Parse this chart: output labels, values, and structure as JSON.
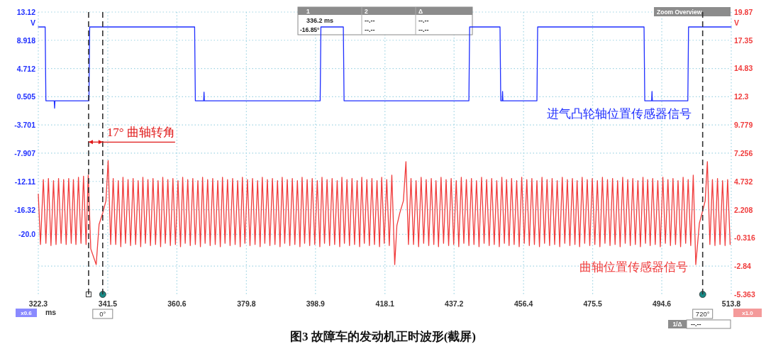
{
  "chart_data": {
    "type": "line",
    "xlabel": "ms",
    "ylabel": "V",
    "y2label": "V",
    "xlim": [
      322.3,
      513.8
    ],
    "xticks": [
      322.3,
      341.5,
      360.6,
      379.8,
      398.9,
      418.1,
      437.2,
      456.4,
      475.5,
      494.6,
      513.8
    ],
    "ylim": [
      -28.94,
      13.12
    ],
    "yticks": [
      13.12,
      8.918,
      4.712,
      0.505,
      -3.701,
      -7.907,
      -12.11,
      -16.32,
      {
        "value": -20.0,
        "label": "-20.0"
      },
      {
        "value": -24.73,
        "label": null
      }
    ],
    "y2lim": [
      -5.363,
      19.87
    ],
    "y2ticks": [
      19.87,
      17.35,
      14.83,
      12.3,
      9.779,
      7.256,
      4.732,
      2.208,
      -0.316,
      -2.84,
      -5.363
    ],
    "grid": true,
    "series": [
      {
        "name": "进气凸轮轴位置传感器信号",
        "color": "#1f2fff",
        "x": [
          322.3,
          324.2,
          324.4,
          326.7,
          326.8,
          326.9,
          336.3,
          336.5,
          365.5,
          365.7,
          368.0,
          368.1,
          368.2,
          400.2,
          400.4,
          406.6,
          406.8,
          441.3,
          441.5,
          449.9,
          450.1,
          450.5,
          450.6,
          450.7,
          460.1,
          460.3,
          489.7,
          489.9,
          491.8,
          491.9,
          492.0,
          501.8,
          502.0,
          513.8
        ],
        "values": [
          10.9,
          10.9,
          -0.1,
          -0.1,
          -1.2,
          -0.1,
          -0.1,
          10.9,
          10.9,
          -0.1,
          -0.1,
          1.2,
          -0.1,
          -0.1,
          10.9,
          10.9,
          -0.1,
          -0.1,
          10.9,
          10.9,
          -0.1,
          -0.1,
          1.3,
          -0.1,
          -0.1,
          10.9,
          10.9,
          -0.1,
          -0.1,
          1.3,
          -0.1,
          -0.1,
          10.9,
          10.9
        ]
      },
      {
        "name": "曲轴位置传感器信号",
        "color": "#f03c3c",
        "axis": "y2",
        "x": [
          322.3,
          322.9,
          323.7,
          324.4,
          325.1,
          325.8,
          326.5,
          327.2,
          327.9,
          328.6,
          329.3,
          330.0,
          330.7,
          331.4,
          332.0,
          332.7,
          333.4,
          334.1,
          334.8,
          335.5,
          336.1,
          336.8,
          338.3,
          339.1,
          340.1,
          341.0,
          341.6,
          342.3,
          343.0,
          343.7,
          344.4,
          345.1,
          345.7,
          346.4,
          347.1,
          347.8,
          348.5,
          349.2,
          349.9,
          350.6,
          351.2,
          351.9,
          352.6,
          353.3,
          354.0,
          354.7,
          355.4,
          356.1,
          356.7,
          357.4,
          358.1,
          358.8,
          359.5,
          360.2,
          360.9,
          361.6,
          362.2,
          362.9,
          363.6,
          364.3,
          365.0,
          365.7,
          366.4,
          367.1,
          367.7,
          368.4,
          369.1,
          369.8,
          370.5,
          371.2,
          371.9,
          372.6,
          373.2,
          373.9,
          374.6,
          375.3,
          376.0,
          376.7,
          377.4,
          378.1,
          378.7,
          379.4,
          380.1,
          380.8,
          381.5,
          382.2,
          382.9,
          383.6,
          384.2,
          384.9,
          385.6,
          386.3,
          387.0,
          387.7,
          388.4,
          389.1,
          389.7,
          390.4,
          391.1,
          391.8,
          392.5,
          393.2,
          393.9,
          394.6,
          395.2,
          395.9,
          396.6,
          397.3,
          398.0,
          398.7,
          399.4,
          400.1,
          400.7,
          401.4,
          402.1,
          402.8,
          403.5,
          404.2,
          404.9,
          405.6,
          406.2,
          406.9,
          407.6,
          408.3,
          409.0,
          409.7,
          410.4,
          411.1,
          411.7,
          412.4,
          413.1,
          413.8,
          414.5,
          415.2,
          415.9,
          416.6,
          417.2,
          417.9,
          418.6,
          419.3,
          420.0,
          420.8,
          421.4,
          422.2,
          423.2,
          423.9,
          424.6,
          425.3,
          426.0,
          426.7,
          427.4,
          428.1,
          428.8,
          429.5,
          430.2,
          430.9,
          431.6,
          432.2,
          432.9,
          433.6,
          434.3,
          435.0,
          435.7,
          436.4,
          437.1,
          437.8,
          438.5,
          439.2,
          439.9,
          440.6,
          441.3,
          442.0,
          442.7,
          443.4,
          444.1,
          444.8,
          445.5,
          446.2,
          446.9,
          447.6,
          448.3,
          449.0,
          449.7,
          450.4,
          451.1,
          451.7,
          452.4,
          453.1,
          453.8,
          454.5,
          455.2,
          455.9,
          456.6,
          457.3,
          458.0,
          458.7,
          459.4,
          460.1,
          460.8,
          461.5,
          462.2,
          462.9,
          463.6,
          464.3,
          465.0,
          465.7,
          466.4,
          467.1,
          467.8,
          468.5,
          469.2,
          469.9,
          470.6,
          471.2,
          471.9,
          472.6,
          473.3,
          474.0,
          474.7,
          475.4,
          476.1,
          476.8,
          477.5,
          478.2,
          478.9,
          479.6,
          480.3,
          481.0,
          481.7,
          482.4,
          483.1,
          483.8,
          484.5,
          485.2,
          485.9,
          486.6,
          487.3,
          488.0,
          488.7,
          489.4,
          490.1,
          490.7,
          491.4,
          492.1,
          492.8,
          493.5,
          494.2,
          494.9,
          495.6,
          496.3,
          497.0,
          497.7,
          498.4,
          499.1,
          499.8,
          500.5,
          501.2,
          501.9,
          502.6,
          503.3,
          504.0,
          505.0,
          505.9,
          506.6,
          507.2,
          507.9,
          508.6,
          509.3,
          510.0,
          510.7,
          511.4,
          512.1,
          512.8,
          513.5
        ],
        "values": [
          3.6,
          -0.9,
          4.9,
          -0.8,
          5.0,
          -1.0,
          4.8,
          -0.9,
          5.0,
          -0.8,
          4.9,
          -0.9,
          5.0,
          -0.8,
          4.9,
          -0.9,
          5.1,
          -0.8,
          5.2,
          -0.9,
          5.3,
          -1.3,
          -2.7,
          0.9,
          1.9,
          3.0,
          6.6,
          -0.9,
          5.0,
          -0.9,
          4.8,
          -1.1,
          5.1,
          -0.8,
          4.9,
          -1.0,
          5.0,
          -0.9,
          4.8,
          -1.1,
          5.1,
          -0.8,
          4.9,
          -1.0,
          5.0,
          -0.9,
          4.8,
          -1.1,
          5.1,
          -0.8,
          4.9,
          -1.0,
          5.0,
          -0.9,
          4.8,
          -1.1,
          5.1,
          -0.8,
          4.9,
          -1.0,
          5.0,
          -0.9,
          4.8,
          -1.1,
          5.1,
          -0.8,
          4.9,
          -1.0,
          5.0,
          -0.9,
          4.8,
          -1.1,
          5.1,
          -0.8,
          4.9,
          -1.0,
          5.0,
          -0.9,
          4.8,
          -1.1,
          5.1,
          -0.8,
          4.9,
          -1.0,
          5.0,
          -0.9,
          4.8,
          -1.1,
          5.1,
          -0.8,
          4.9,
          -1.0,
          5.0,
          -0.9,
          4.8,
          -1.1,
          5.1,
          -0.8,
          4.9,
          -1.0,
          5.0,
          -0.9,
          4.8,
          -1.1,
          5.1,
          -0.8,
          4.9,
          -1.0,
          5.0,
          -0.9,
          4.8,
          -1.1,
          5.1,
          -0.8,
          4.9,
          -1.0,
          5.0,
          -0.9,
          4.8,
          -1.1,
          5.1,
          -0.8,
          4.9,
          -1.0,
          5.0,
          -0.9,
          4.8,
          -1.1,
          5.1,
          -0.8,
          4.9,
          -1.0,
          5.0,
          -0.9,
          4.8,
          -1.1,
          5.1,
          -0.8,
          4.9,
          -1.0,
          5.3,
          -2.7,
          0.8,
          1.9,
          3.0,
          6.5,
          -0.9,
          5.0,
          -0.9,
          4.8,
          -1.1,
          5.1,
          -0.8,
          4.9,
          -1.0,
          5.0,
          -0.9,
          4.8,
          -1.1,
          5.1,
          -0.8,
          4.9,
          -1.0,
          5.0,
          -0.9,
          4.8,
          -1.1,
          5.1,
          -0.8,
          4.9,
          -1.0,
          5.0,
          -0.9,
          4.8,
          -1.1,
          5.1,
          -0.8,
          4.9,
          -1.0,
          5.0,
          -0.9,
          4.8,
          -1.1,
          5.1,
          -0.8,
          4.9,
          -1.0,
          5.0,
          -0.9,
          4.8,
          -1.1,
          5.1,
          -0.8,
          4.9,
          -1.0,
          5.0,
          -0.9,
          4.8,
          -1.1,
          5.1,
          -0.8,
          4.9,
          -1.0,
          5.0,
          -0.9,
          4.8,
          -1.1,
          5.1,
          -0.8,
          4.9,
          -1.0,
          5.0,
          -0.9,
          4.8,
          -1.1,
          5.1,
          -0.8,
          4.9,
          -1.0,
          5.0,
          -0.9,
          4.8,
          -1.1,
          5.1,
          -0.8,
          4.9,
          -1.0,
          5.0,
          -0.9,
          4.8,
          -1.1,
          5.1,
          -0.8,
          4.9,
          -1.0,
          5.0,
          -0.9,
          4.8,
          -1.1,
          5.1,
          -0.8,
          4.9,
          -1.0,
          5.0,
          -0.9,
          4.8,
          -1.1,
          5.1,
          -0.8,
          4.9,
          -1.0,
          5.0,
          -0.9,
          4.8,
          -1.1,
          5.1,
          -0.8,
          4.9,
          -1.0,
          5.3,
          -2.7,
          1.0,
          2.1,
          3.0,
          6.5,
          -0.9,
          4.9,
          -1.0,
          5.0,
          -0.9,
          4.8,
          -1.0,
          4.9,
          -0.9
        ]
      }
    ],
    "ref_lines": [
      {
        "axis": "x",
        "value": 336.2,
        "label": null,
        "color": "#333333",
        "line_style": "dashed"
      },
      {
        "axis": "x",
        "value": 340.1,
        "label": null,
        "color": "#333333",
        "line_style": "dashed"
      },
      {
        "axis": "x",
        "value": 505.9,
        "label": null,
        "color": "#333333",
        "line_style": "dashed"
      }
    ],
    "annotations": [
      {
        "text": "17° 曲轴转角",
        "x": 340.1,
        "y": -6.25
      },
      "图3 故障车的发动机正时波形(截屏)",
      "1",
      "2",
      "Δ",
      "336.2 ms",
      "--.--",
      "--.--",
      "-16.85°",
      "--.--",
      "--.--",
      "Zoom Overview",
      "x0.6",
      "x1.0",
      "1/Δ",
      "--.--",
      "0°",
      "720°"
    ]
  }
}
